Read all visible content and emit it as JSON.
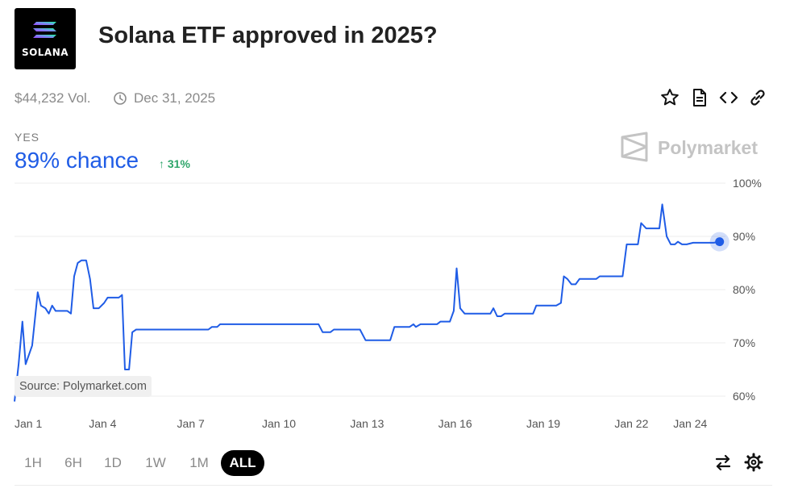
{
  "market": {
    "logo_text": "SOLANA",
    "title": "Solana ETF approved in 2025?",
    "volume": "$44,232 Vol.",
    "end_date": "Dec 31, 2025"
  },
  "outcome": {
    "label": "YES",
    "chance": "89% chance",
    "change": "31%",
    "change_color": "#2ea56a",
    "accent_color": "#1f5ce6"
  },
  "brand": {
    "name": "Polymarket"
  },
  "source_label": "Source: Polymarket.com",
  "actions": [
    "star-icon",
    "document-icon",
    "code-embed-icon",
    "link-icon"
  ],
  "time_ranges": [
    {
      "label": "1H",
      "active": false
    },
    {
      "label": "6H",
      "active": false
    },
    {
      "label": "1D",
      "active": false
    },
    {
      "label": "1W",
      "active": false
    },
    {
      "label": "1M",
      "active": false
    },
    {
      "label": "ALL",
      "active": true
    }
  ],
  "tools": [
    "swap-arrows-icon",
    "settings-gear-icon"
  ],
  "chart_data": {
    "type": "line",
    "title": "",
    "xlabel": "",
    "ylabel": "",
    "x_unit": "days since Jan 1",
    "x_ticks": [
      {
        "label": "Jan 1",
        "x": 0
      },
      {
        "label": "Jan 4",
        "x": 3
      },
      {
        "label": "Jan 7",
        "x": 6
      },
      {
        "label": "Jan 10",
        "x": 9
      },
      {
        "label": "Jan 13",
        "x": 12
      },
      {
        "label": "Jan 16",
        "x": 15
      },
      {
        "label": "Jan 19",
        "x": 18
      },
      {
        "label": "Jan 22",
        "x": 21
      },
      {
        "label": "Jan 24",
        "x": 23
      }
    ],
    "y_ticks": [
      {
        "label": "100%",
        "y": 100
      },
      {
        "label": "90%",
        "y": 90
      },
      {
        "label": "80%",
        "y": 80
      },
      {
        "label": "70%",
        "y": 70
      },
      {
        "label": "60%",
        "y": 60
      }
    ],
    "ylim": [
      58,
      100
    ],
    "xlim": [
      0,
      24.2
    ],
    "grid": true,
    "series": [
      {
        "name": "",
        "color": "#1f5ce6",
        "points": [
          [
            0.0,
            59.0
          ],
          [
            0.14,
            66.0
          ],
          [
            0.27,
            74.0
          ],
          [
            0.38,
            66.0
          ],
          [
            0.6,
            69.5
          ],
          [
            0.79,
            79.5
          ],
          [
            0.9,
            77.0
          ],
          [
            1.05,
            76.5
          ],
          [
            1.17,
            75.5
          ],
          [
            1.28,
            77.0
          ],
          [
            1.4,
            76.0
          ],
          [
            1.8,
            76.0
          ],
          [
            1.92,
            75.5
          ],
          [
            2.03,
            82.5
          ],
          [
            2.15,
            85.0
          ],
          [
            2.28,
            85.5
          ],
          [
            2.44,
            85.5
          ],
          [
            2.57,
            82.0
          ],
          [
            2.69,
            76.5
          ],
          [
            2.87,
            76.5
          ],
          [
            3.05,
            77.5
          ],
          [
            3.17,
            78.5
          ],
          [
            3.55,
            78.5
          ],
          [
            3.66,
            79.0
          ],
          [
            3.76,
            65.0
          ],
          [
            3.9,
            65.0
          ],
          [
            4.01,
            72.0
          ],
          [
            4.14,
            72.5
          ],
          [
            6.6,
            72.5
          ],
          [
            6.72,
            73.0
          ],
          [
            6.9,
            73.0
          ],
          [
            7.0,
            73.5
          ],
          [
            10.35,
            73.5
          ],
          [
            10.49,
            72.0
          ],
          [
            10.75,
            72.0
          ],
          [
            10.87,
            72.5
          ],
          [
            11.76,
            72.5
          ],
          [
            11.95,
            70.5
          ],
          [
            12.79,
            70.5
          ],
          [
            12.93,
            73.0
          ],
          [
            13.45,
            73.0
          ],
          [
            13.58,
            73.5
          ],
          [
            13.66,
            73.0
          ],
          [
            13.82,
            73.5
          ],
          [
            14.38,
            73.5
          ],
          [
            14.5,
            74.0
          ],
          [
            14.82,
            74.0
          ],
          [
            14.95,
            76.0
          ],
          [
            15.05,
            84.0
          ],
          [
            15.17,
            76.5
          ],
          [
            15.32,
            75.5
          ],
          [
            16.2,
            75.5
          ],
          [
            16.3,
            76.5
          ],
          [
            16.43,
            75.0
          ],
          [
            16.56,
            75.0
          ],
          [
            16.69,
            75.5
          ],
          [
            17.65,
            75.5
          ],
          [
            17.76,
            77.0
          ],
          [
            18.44,
            77.0
          ],
          [
            18.6,
            77.5
          ],
          [
            18.7,
            82.5
          ],
          [
            18.82,
            82.0
          ],
          [
            18.96,
            81.0
          ],
          [
            19.1,
            81.0
          ],
          [
            19.23,
            82.0
          ],
          [
            19.8,
            82.0
          ],
          [
            19.92,
            82.5
          ],
          [
            20.7,
            82.5
          ],
          [
            20.84,
            88.5
          ],
          [
            21.22,
            88.5
          ],
          [
            21.33,
            92.5
          ],
          [
            21.5,
            91.5
          ],
          [
            21.95,
            91.5
          ],
          [
            22.05,
            96.0
          ],
          [
            22.2,
            90.0
          ],
          [
            22.34,
            88.5
          ],
          [
            22.48,
            88.5
          ],
          [
            22.58,
            89.0
          ],
          [
            22.72,
            88.5
          ],
          [
            22.88,
            88.5
          ],
          [
            23.1,
            88.8
          ],
          [
            23.8,
            88.8
          ],
          [
            24.0,
            89.0
          ]
        ]
      }
    ],
    "current": {
      "x": 24.0,
      "y": 89.0
    }
  }
}
